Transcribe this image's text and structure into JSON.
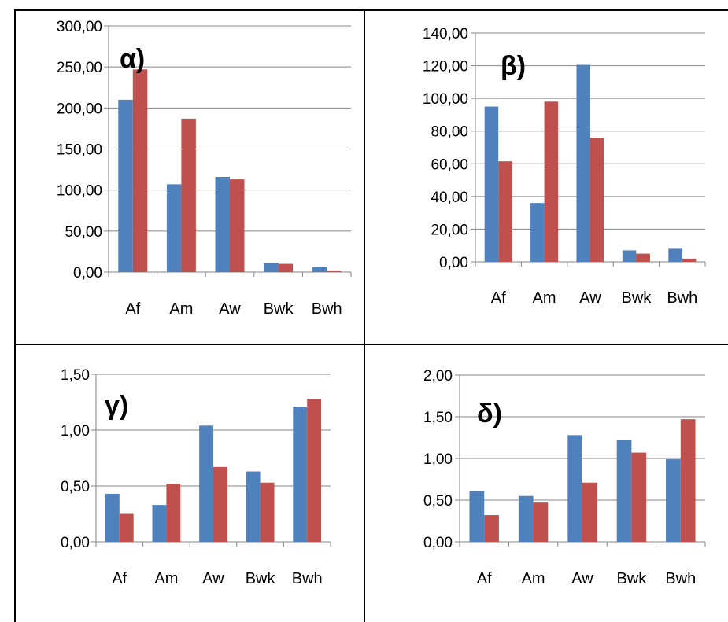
{
  "colors": {
    "series_blue": "#4f81bd",
    "series_red": "#c0504d",
    "gridline": "#868686",
    "axis": "#868686"
  },
  "chart_data": [
    {
      "type": "bar",
      "panel_label": "α)",
      "categories": [
        "Af",
        "Am",
        "Aw",
        "Bwk",
        "Bwh"
      ],
      "series": [
        {
          "values": [
            210,
            107,
            116,
            11,
            6
          ]
        },
        {
          "values": [
            247,
            187,
            113,
            10,
            2
          ]
        }
      ],
      "ylim": [
        0,
        300
      ],
      "ytick_labels": [
        "0,00",
        "50,00",
        "100,00",
        "150,00",
        "200,00",
        "250,00",
        "300,00"
      ],
      "grid": true
    },
    {
      "type": "bar",
      "panel_label": "β)",
      "categories": [
        "Af",
        "Am",
        "Aw",
        "Bwk",
        "Bwh"
      ],
      "series": [
        {
          "values": [
            95,
            36,
            120.5,
            7,
            8
          ]
        },
        {
          "values": [
            61.5,
            98,
            76,
            5,
            2
          ]
        }
      ],
      "ylim": [
        0,
        140
      ],
      "ytick_labels": [
        "0,00",
        "20,00",
        "40,00",
        "60,00",
        "80,00",
        "100,00",
        "120,00",
        "140,00"
      ],
      "grid": true
    },
    {
      "type": "bar",
      "panel_label": "γ)",
      "categories": [
        "Af",
        "Am",
        "Aw",
        "Bwk",
        "Bwh"
      ],
      "series": [
        {
          "values": [
            0.43,
            0.33,
            1.04,
            0.63,
            1.21
          ]
        },
        {
          "values": [
            0.25,
            0.52,
            0.67,
            0.53,
            1.28
          ]
        }
      ],
      "ylim": [
        0,
        1.5
      ],
      "ytick_labels": [
        "0,00",
        "0,50",
        "1,00",
        "1,50"
      ],
      "grid": true
    },
    {
      "type": "bar",
      "panel_label": "δ)",
      "categories": [
        "Af",
        "Am",
        "Aw",
        "Bwk",
        "Bwh"
      ],
      "series": [
        {
          "values": [
            0.61,
            0.55,
            1.28,
            1.22,
            0.99
          ]
        },
        {
          "values": [
            0.32,
            0.47,
            0.71,
            1.07,
            1.47
          ]
        }
      ],
      "ylim": [
        0,
        2
      ],
      "ytick_labels": [
        "0,00",
        "0,50",
        "1,00",
        "1,50",
        "2,00"
      ],
      "grid": true
    }
  ]
}
